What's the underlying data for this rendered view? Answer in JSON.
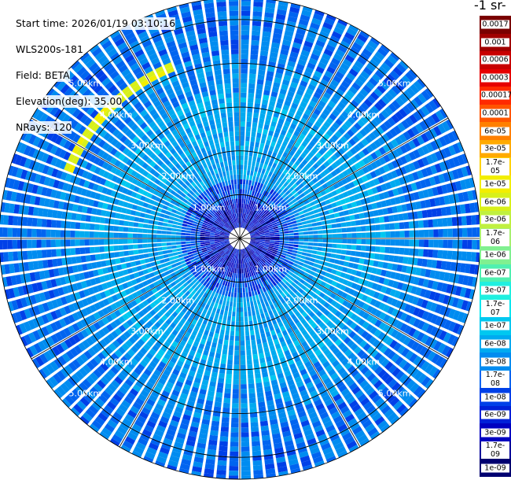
{
  "info": {
    "start_time": "Start time: 2026/01/19 03:10:16",
    "instrument": "WLS200s-181",
    "field": "Field: BETA",
    "elevation": "Elevation(deg): 35.00",
    "nrays": "NRays: 120"
  },
  "colorbar_unit": "-1 sr-",
  "chart_data": {
    "type": "heatmap",
    "projection": "polar (PPI scan)",
    "field": "BETA",
    "elevation_deg": 35.0,
    "n_rays": 120,
    "range_rings_km": [
      1.0,
      2.0,
      3.0,
      4.0,
      5.0
    ],
    "ring_label_text": [
      "1.00km",
      "2.00km",
      "3.00km",
      "4.00km",
      "5.00km"
    ],
    "colorbar": {
      "scale": "log",
      "tick_labels": [
        "0.0017",
        "0.001",
        "0.0006",
        "0.0003",
        "0.00017",
        "0.0001",
        "6e-05",
        "3e-05",
        "1.7e-05",
        "1e-05",
        "6e-06",
        "3e-06",
        "1.7e-06",
        "1e-06",
        "6e-07",
        "3e-07",
        "1.7e-07",
        "1e-07",
        "6e-08",
        "3e-08",
        "1.7e-08",
        "1e-08",
        "6e-09",
        "3e-09",
        "1.7e-09",
        "1e-09"
      ],
      "colors": [
        "#7a0000",
        "#a00000",
        "#c80000",
        "#e60000",
        "#ff2a00",
        "#ff5500",
        "#ff8000",
        "#ffaa00",
        "#ffd200",
        "#f2ee00",
        "#d8f01a",
        "#c0f040",
        "#a8f070",
        "#80f090",
        "#50f0b0",
        "#20f0e0",
        "#00e6f0",
        "#00c8f0",
        "#00aaf0",
        "#008cf0",
        "#0064f0",
        "#0040e8",
        "#0020d8",
        "#0000c0",
        "#00009a",
        "#000070"
      ]
    },
    "pattern": {
      "near_range_km": [
        0,
        1.0
      ],
      "near_range_level": "1e-08 to 3e-08",
      "mid_range_km": [
        1.0,
        3.5
      ],
      "mid_range_level": "1e-07 to 1.7e-07",
      "far_range_km": [
        3.5,
        5.0
      ],
      "far_range_level": "3e-08 to 1e-07",
      "arc_feature": {
        "range_km": 4.2,
        "azimuth_deg_from": 290,
        "azimuth_deg_to": 340,
        "level": "1e-05 to 1.7e-05"
      }
    }
  }
}
